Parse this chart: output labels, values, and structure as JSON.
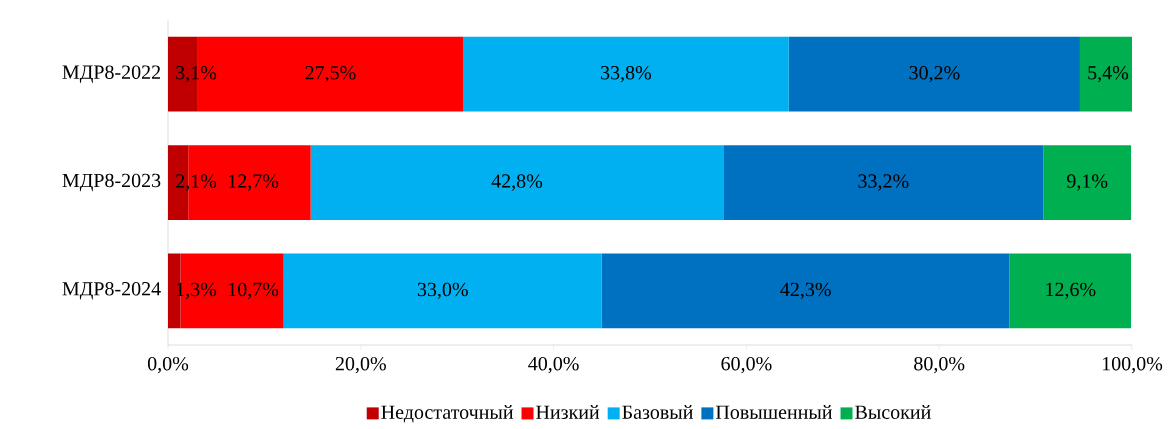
{
  "chart_data": {
    "type": "bar",
    "orientation": "horizontal",
    "stacked": true,
    "categories": [
      "МДР8-2022",
      "МДР8-2023",
      "МДР8-2024"
    ],
    "series": [
      {
        "name": "Недостаточный",
        "color": "#c00000",
        "values": [
          3.1,
          2.1,
          1.3
        ],
        "value_labels": [
          "3,1%",
          "2,1%",
          "1,3%"
        ]
      },
      {
        "name": "Низкий",
        "color": "#ff0000",
        "values": [
          27.5,
          12.7,
          10.7
        ],
        "value_labels": [
          "27,5%",
          "12,7%",
          "10,7%"
        ]
      },
      {
        "name": "Базовый",
        "color": "#00b0f0",
        "values": [
          33.8,
          42.8,
          33.0
        ],
        "value_labels": [
          "33,8%",
          "42,8%",
          "33,0%"
        ]
      },
      {
        "name": "Повышенный",
        "color": "#0070c0",
        "values": [
          30.2,
          33.2,
          42.3
        ],
        "value_labels": [
          "30,2%",
          "33,2%",
          "42,3%"
        ]
      },
      {
        "name": "Высокий",
        "color": "#00b050",
        "values": [
          5.4,
          9.1,
          12.6
        ],
        "value_labels": [
          "5,4%",
          "9,1%",
          "12,6%"
        ]
      }
    ],
    "xlim": [
      0,
      100
    ],
    "xticks": [
      {
        "value": 0,
        "label": "0,0%"
      },
      {
        "value": 20,
        "label": "20,0%"
      },
      {
        "value": 40,
        "label": "40,0%"
      },
      {
        "value": 60,
        "label": "60,0%"
      },
      {
        "value": 80,
        "label": "80,0%"
      },
      {
        "value": 100,
        "label": "100,0%"
      }
    ],
    "legend": "bottom"
  }
}
